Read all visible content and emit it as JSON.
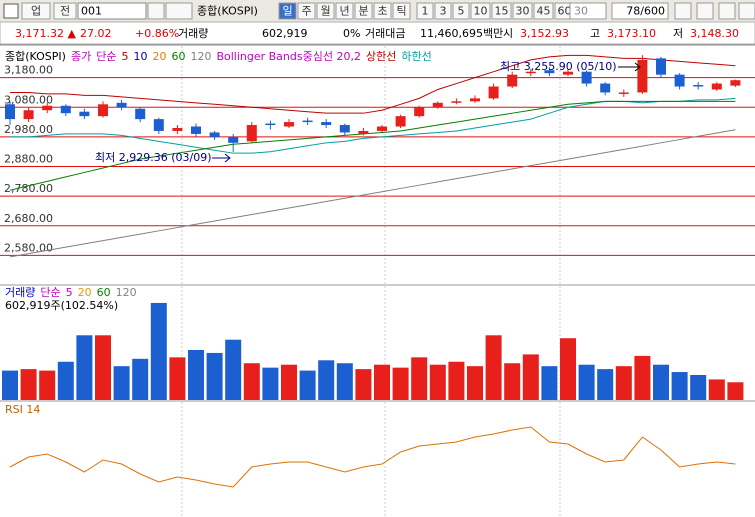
{
  "toolbar": {
    "market": "업",
    "type": "전",
    "code": "001",
    "name": "종합(KOSPI)",
    "periods": [
      "일",
      "주",
      "월",
      "년",
      "분",
      "초",
      "틱"
    ],
    "intervals": [
      "1",
      "3",
      "5",
      "10",
      "15",
      "30",
      "45",
      "60"
    ],
    "count": "30",
    "range": "78/600"
  },
  "quote": {
    "price": "3,171.32 ▲",
    "change": "27.02",
    "percent": "+0.86%",
    "volume_label": "거래량",
    "volume": "602,919",
    "ratio": "0%",
    "amount_label": "거래대금",
    "amount": "11,460,695백만",
    "open_label": "시",
    "open": "3,152.93",
    "high_label": "고",
    "high": "3,173.10",
    "low_label": "저",
    "low": "3,148.30"
  },
  "chart_data": [
    {
      "type": "candlestick",
      "legend": [
        {
          "text": "종합(KOSPI)",
          "color": "#000000"
        },
        {
          "text": "종가",
          "color": "#c000c0"
        },
        {
          "text": "단순",
          "color": "#c000c0"
        },
        {
          "text": "5",
          "color": "#c00000"
        },
        {
          "text": "10",
          "color": "#0000c0"
        },
        {
          "text": "20",
          "color": "#e08000"
        },
        {
          "text": "60",
          "color": "#008000"
        },
        {
          "text": "120",
          "color": "#808080"
        },
        {
          "text": "Bollinger Bands중심선 20,2",
          "color": "#c000c0"
        },
        {
          "text": "상한선",
          "color": "#c00000"
        },
        {
          "text": "하한선",
          "color": "#00a0a0"
        }
      ],
      "up_color": "#e8201c",
      "down_color": "#1c5fd0",
      "open": [
        3090,
        3040,
        3070,
        3085,
        3065,
        3050,
        3095,
        3075,
        3040,
        3000,
        3015,
        2995,
        2980,
        2965,
        3025,
        3015,
        3035,
        3030,
        3020,
        2990,
        3000,
        3015,
        3050,
        3080,
        3095,
        3100,
        3110,
        3150,
        3195,
        3205,
        3190,
        3200,
        3160,
        3125,
        3130,
        3245,
        3190,
        3155,
        3140,
        3152.93
      ],
      "high": [
        3100,
        3080,
        3095,
        3090,
        3075,
        3100,
        3105,
        3080,
        3045,
        3020,
        3025,
        3000,
        2990,
        3030,
        3035,
        3040,
        3045,
        3040,
        3025,
        3010,
        3020,
        3055,
        3085,
        3100,
        3110,
        3120,
        3160,
        3200,
        3210,
        3215,
        3210,
        3205,
        3165,
        3140,
        3255.9,
        3250,
        3195,
        3165,
        3165,
        3173.1
      ],
      "low": [
        3020,
        3030,
        3060,
        3050,
        3040,
        3045,
        3070,
        3030,
        2990,
        2990,
        2980,
        2970,
        2929.36,
        2960,
        3005,
        3010,
        3020,
        3010,
        2985,
        2985,
        2995,
        3010,
        3045,
        3075,
        3090,
        3095,
        3105,
        3145,
        3185,
        3185,
        3185,
        3150,
        3120,
        3115,
        3125,
        3180,
        3140,
        3140,
        3135,
        3148.3
      ],
      "close": [
        3040,
        3070,
        3085,
        3060,
        3050,
        3090,
        3080,
        3040,
        3000,
        3010,
        2990,
        2980,
        2960,
        3020,
        3020,
        3030,
        3030,
        3020,
        2995,
        3000,
        3015,
        3050,
        3080,
        3095,
        3100,
        3110,
        3150,
        3190,
        3200,
        3195,
        3200,
        3160,
        3130,
        3130,
        3240,
        3190,
        3150,
        3150,
        3160,
        3171.32
      ],
      "lines": [
        {
          "color": "#c00000",
          "values": [
            3130,
            3130,
            3125,
            3125,
            3120,
            3120,
            3115,
            3110,
            3105,
            3100,
            3095,
            3090,
            3085,
            3080,
            3075,
            3070,
            3065,
            3060,
            3060,
            3060,
            3070,
            3090,
            3110,
            3140,
            3160,
            3180,
            3200,
            3220,
            3240,
            3250,
            3255,
            3255,
            3250,
            3245,
            3245,
            3240,
            3235,
            3230,
            3225,
            3220
          ]
        },
        {
          "color": "#00a0a0",
          "values": [
            2980,
            2980,
            2985,
            2990,
            2990,
            2990,
            2985,
            2975,
            2965,
            2955,
            2945,
            2935,
            2925,
            2925,
            2930,
            2940,
            2950,
            2960,
            2965,
            2975,
            2980,
            2985,
            2990,
            2995,
            3000,
            3010,
            3020,
            3030,
            3040,
            3060,
            3080,
            3090,
            3100,
            3100,
            3095,
            3100,
            3100,
            3105,
            3105,
            3110
          ]
        },
        {
          "color": "#008000",
          "values": [
            2800,
            2815,
            2830,
            2845,
            2860,
            2875,
            2890,
            2905,
            2915,
            2925,
            2935,
            2945,
            2955,
            2960,
            2965,
            2970,
            2975,
            2980,
            2985,
            2990,
            2995,
            3000,
            3010,
            3020,
            3030,
            3040,
            3050,
            3060,
            3070,
            3080,
            3090,
            3095,
            3100,
            3100,
            3100,
            3100,
            3100,
            3100,
            3100,
            3100
          ]
        },
        {
          "color": "#808080",
          "values": [
            2575,
            2586,
            2597,
            2608,
            2619,
            2630,
            2641,
            2652,
            2663,
            2674,
            2685,
            2696,
            2707,
            2718,
            2729,
            2740,
            2751,
            2762,
            2773,
            2784,
            2795,
            2806,
            2817,
            2828,
            2839,
            2850,
            2861,
            2872,
            2883,
            2894,
            2905,
            2916,
            2927,
            2938,
            2949,
            2960,
            2971,
            2982,
            2993,
            3004
          ]
        }
      ],
      "annotations": [
        "최고 3,255.90 (05/10)",
        "최저 2,929.36 (03/09)"
      ],
      "ylim": [
        2470,
        3280
      ],
      "yticks": [
        {
          "value": 3180,
          "label": "3,180.00"
        },
        {
          "value": 3080,
          "label": "3,080.00"
        },
        {
          "value": 2980,
          "label": "2,980.00"
        },
        {
          "value": 2880,
          "label": "2,880.00"
        },
        {
          "value": 2780,
          "label": "2,780.00"
        },
        {
          "value": 2680,
          "label": "2,680.00"
        },
        {
          "value": 2580,
          "label": "2,580.00"
        }
      ],
      "grid": true
    },
    {
      "type": "bar",
      "legend": [
        {
          "text": "거래량",
          "color": "#0000c0"
        },
        {
          "text": "단순",
          "color": "#c000c0"
        },
        {
          "text": "5",
          "color": "#c000c0"
        },
        {
          "text": "20",
          "color": "#e0a000"
        },
        {
          "text": "60",
          "color": "#008000"
        },
        {
          "text": "120",
          "color": "#808080"
        }
      ],
      "subtitle": "602,919주(102.54%)",
      "values": [
        1000000,
        1050000,
        1000000,
        1300000,
        2200000,
        2200000,
        1150000,
        1400000,
        3300000,
        1450000,
        1700000,
        1600000,
        2050000,
        1250000,
        1100000,
        1200000,
        1000000,
        1350000,
        1250000,
        1050000,
        1200000,
        1100000,
        1450000,
        1200000,
        1300000,
        1150000,
        2200000,
        1250000,
        1550000,
        1150000,
        2100000,
        1200000,
        1050000,
        1150000,
        1500000,
        1200000,
        950000,
        850000,
        700000,
        602919
      ],
      "ylim": [
        0,
        3400000
      ]
    },
    {
      "type": "line",
      "title": "RSI 14",
      "color": "#e07000",
      "values": [
        45,
        55,
        58,
        50,
        40,
        52,
        48,
        38,
        30,
        35,
        32,
        28,
        25,
        45,
        48,
        50,
        50,
        45,
        40,
        45,
        48,
        60,
        66,
        68,
        70,
        75,
        78,
        82,
        85,
        70,
        68,
        58,
        50,
        52,
        75,
        62,
        45,
        48,
        50,
        48
      ],
      "ylim": [
        0,
        100
      ]
    }
  ]
}
